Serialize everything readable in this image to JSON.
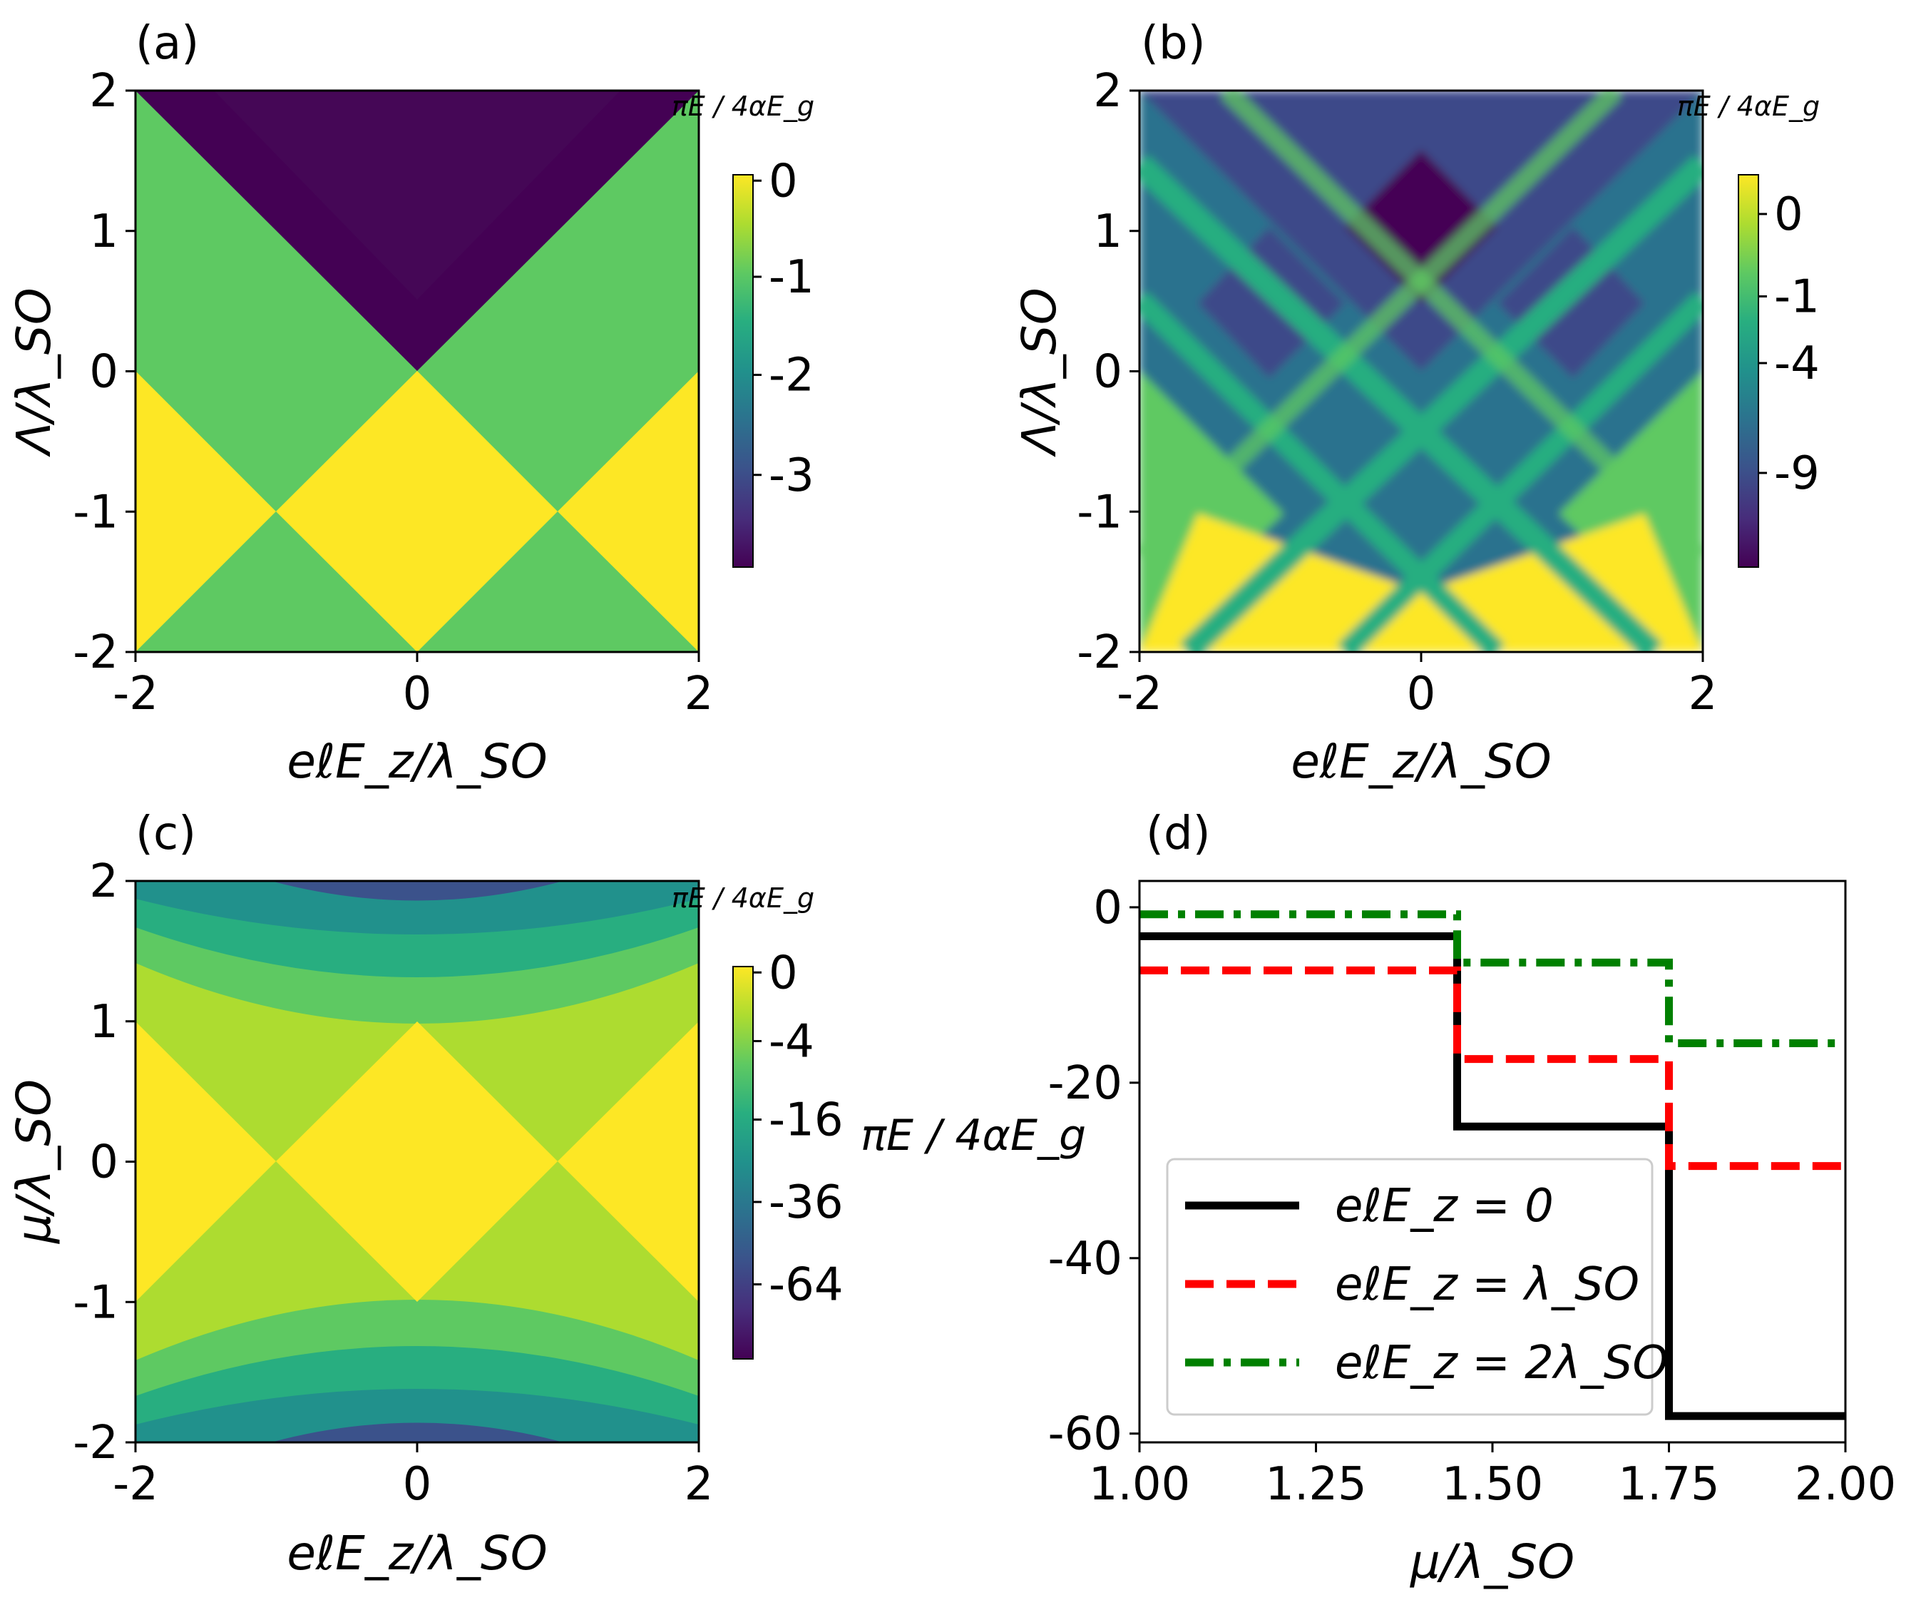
{
  "chart_data": [
    {
      "panel": "(a)",
      "type": "heatmap",
      "xlabel": "eℓE_z/λ_SO",
      "ylabel": "Λ/λ_SO",
      "xlim": [
        -2,
        2
      ],
      "ylim": [
        -2,
        2
      ],
      "x_ticks": [
        "-2",
        "0",
        "2"
      ],
      "y_ticks": [
        "-2",
        "-1",
        "0",
        "1",
        "2"
      ],
      "colorbar_label": "πE / 4αE_g",
      "colorbar_ticks": [
        "0",
        "-1",
        "-2",
        "-3"
      ],
      "colorbar_range": [
        -4,
        0
      ],
      "regions": [
        {
          "description": "upper V region (Λ > |x|)",
          "value": -4
        },
        {
          "description": "green middle bands",
          "value": -1
        },
        {
          "description": "yellow diamond lattice (Λ < 0)",
          "value": 0
        }
      ]
    },
    {
      "panel": "(b)",
      "type": "heatmap",
      "xlabel": "eℓE_z/λ_SO",
      "ylabel": "Λ/λ_SO",
      "xlim": [
        -2,
        2
      ],
      "ylim": [
        -2,
        2
      ],
      "x_ticks": [
        "-2",
        "0",
        "2"
      ],
      "y_ticks": [
        "-2",
        "-1",
        "0",
        "1",
        "2"
      ],
      "colorbar_label": "πE / 4αE_g",
      "colorbar_ticks": [
        "0",
        "-1",
        "-4",
        "-9"
      ],
      "colorbar_range": [
        -12,
        1
      ]
    },
    {
      "panel": "(c)",
      "type": "heatmap",
      "xlabel": "eℓE_z/λ_SO",
      "ylabel": "μ/λ_SO",
      "xlim": [
        -2,
        2
      ],
      "ylim": [
        -2,
        2
      ],
      "x_ticks": [
        "-2",
        "0",
        "2"
      ],
      "y_ticks": [
        "-2",
        "-1",
        "0",
        "1",
        "2"
      ],
      "colorbar_label": "πE / 4αE_g",
      "colorbar_ticks": [
        "0",
        "-4",
        "-16",
        "-36",
        "-64"
      ],
      "colorbar_range": [
        -80,
        0
      ]
    },
    {
      "panel": "(d)",
      "type": "line",
      "xlabel": "μ/λ_SO",
      "ylabel": "πE / 4αE_g",
      "xlim": [
        1.0,
        2.0
      ],
      "ylim": [
        -61,
        3
      ],
      "x_ticks": [
        "1.00",
        "1.25",
        "1.50",
        "1.75",
        "2.00"
      ],
      "y_ticks": [
        "0",
        "-20",
        "-40",
        "-60"
      ],
      "legend_position": "lower-left",
      "series": [
        {
          "name": "eℓE_z = 0",
          "color": "#000000",
          "style": "solid",
          "x": [
            1.0,
            1.45,
            1.45,
            1.75,
            1.75,
            2.0
          ],
          "y": [
            -3.3,
            -3.3,
            -25,
            -25,
            -58,
            -58
          ]
        },
        {
          "name": "eℓE_z = λ_SO",
          "color": "#ff0000",
          "style": "dashed",
          "x": [
            1.0,
            1.45,
            1.45,
            1.75,
            1.75,
            2.0
          ],
          "y": [
            -7.2,
            -7.2,
            -17.3,
            -17.3,
            -29.5,
            -29.5
          ]
        },
        {
          "name": "eℓE_z = 2λ_SO",
          "color": "#008000",
          "style": "dashdot",
          "x": [
            1.0,
            1.45,
            1.45,
            1.75,
            1.75,
            2.0
          ],
          "y": [
            -0.8,
            -0.8,
            -6.3,
            -6.3,
            -15.5,
            -15.5
          ]
        }
      ]
    }
  ]
}
